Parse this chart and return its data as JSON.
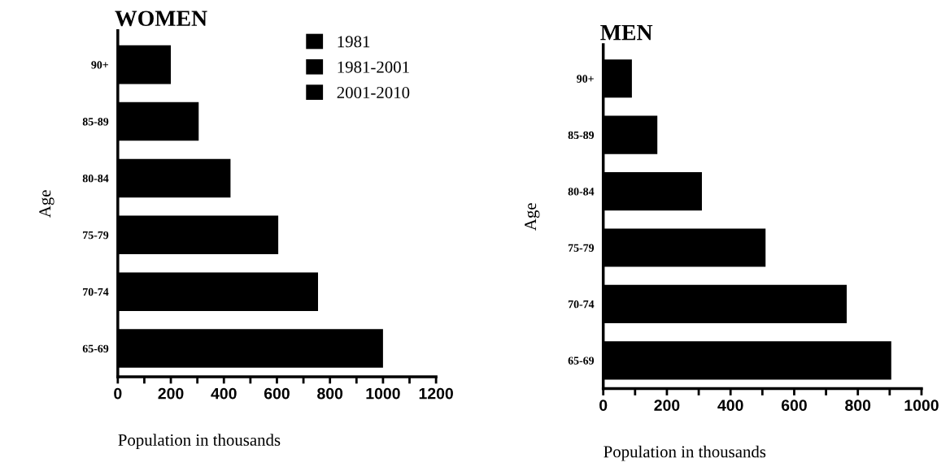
{
  "chart_data": [
    {
      "type": "bar",
      "orientation": "horizontal",
      "title": "WOMEN",
      "xlabel": "Population in thousands",
      "ylabel": "Age",
      "categories": [
        "90+",
        "85-89",
        "80-84",
        "75-79",
        "70-74",
        "65-69"
      ],
      "series": [
        {
          "name": "1981",
          "color": "#000000",
          "values": [
            200,
            305,
            425,
            605,
            755,
            1000
          ]
        },
        {
          "name": "1981-2001",
          "color": "#000000",
          "values": [
            null,
            null,
            null,
            null,
            null,
            null
          ]
        },
        {
          "name": "2001-2010",
          "color": "#000000",
          "values": [
            null,
            null,
            null,
            null,
            null,
            null
          ]
        }
      ],
      "xlim": [
        0,
        1200
      ],
      "xticks": [
        0,
        {
          "value": 100,
          "label": null
        },
        200,
        {
          "value": 300,
          "label": null
        },
        400,
        {
          "value": 500,
          "label": null
        },
        600,
        {
          "value": 700,
          "label": null
        },
        800,
        {
          "value": 900,
          "label": null
        },
        1000,
        {
          "value": 1100,
          "label": null
        },
        1200
      ],
      "legend": "top right",
      "grid": false
    },
    {
      "type": "bar",
      "orientation": "horizontal",
      "title": "MEN",
      "xlabel": "Population in thousands",
      "ylabel": "Age",
      "categories": [
        "90+",
        "85-89",
        "80-84",
        "75-79",
        "70-74",
        "65-69"
      ],
      "series": [
        {
          "color": "#000000",
          "values": [
            90,
            170,
            310,
            510,
            765,
            905
          ]
        }
      ],
      "xlim": [
        0,
        1000
      ],
      "xticks": [
        0,
        {
          "value": 100,
          "label": null
        },
        200,
        {
          "value": 300,
          "label": null
        },
        400,
        {
          "value": 500,
          "label": null
        },
        600,
        {
          "value": 700,
          "label": null
        },
        800,
        {
          "value": 900,
          "label": null
        },
        1000
      ],
      "grid": false
    }
  ]
}
